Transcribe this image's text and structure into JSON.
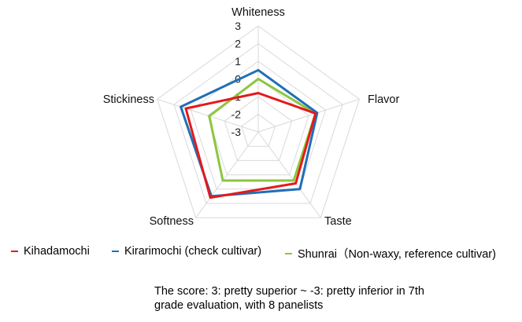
{
  "chart_data": {
    "type": "radar",
    "axes": [
      "Whiteness",
      "Flavor",
      "Taste",
      "Softness",
      "Stickiness"
    ],
    "range": [
      -3,
      3
    ],
    "ticks": [
      "3",
      "2",
      "1",
      "0",
      "-1",
      "-2",
      "-3"
    ],
    "grid": true,
    "series": [
      {
        "name": "Kihadamochi",
        "color": "#e31a1c",
        "values": [
          -0.8,
          0.4,
          0.6,
          1.6,
          1.3
        ]
      },
      {
        "name": "Kirarimochi (check cultivar)",
        "color": "#1f6fb8",
        "values": [
          0.5,
          0.5,
          1.0,
          1.5,
          1.6
        ]
      },
      {
        "name": "Shunrai（Non-waxy,  reference cultivar)",
        "color": "#8cc63e",
        "values": [
          0.0,
          0.4,
          0.4,
          0.4,
          -0.1
        ]
      }
    ],
    "legend_position": "bottom",
    "note": {
      "line1": "The score:  3: pretty superior ~ -3: pretty inferior in 7th",
      "line2": "grade evaluation, with 8 panelists"
    }
  }
}
